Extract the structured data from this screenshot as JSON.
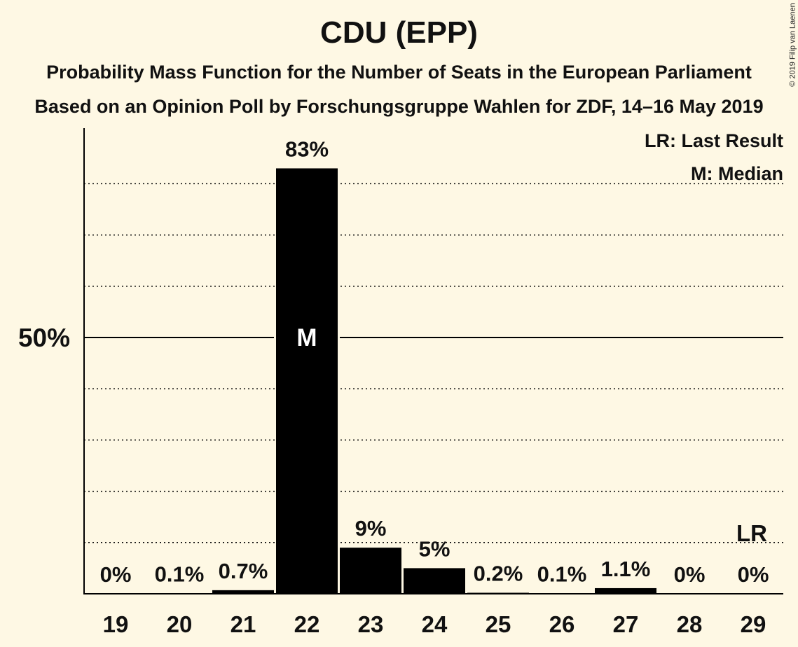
{
  "title": "CDU (EPP)",
  "subtitle1": "Probability Mass Function for the Number of Seats in the European Parliament",
  "subtitle2": "Based on an Opinion Poll by Forschungsgruppe Wahlen for ZDF, 14–16 May 2019",
  "copyright": "© 2019 Filip van Laenen",
  "legend": {
    "lr": "LR: Last Result",
    "m": "M: Median"
  },
  "chart_data": {
    "type": "bar",
    "categories": [
      "19",
      "20",
      "21",
      "22",
      "23",
      "24",
      "25",
      "26",
      "27",
      "28",
      "29"
    ],
    "values": [
      0,
      0.1,
      0.7,
      83,
      9,
      5,
      0.2,
      0.1,
      1.1,
      0,
      0
    ],
    "labels": [
      "0%",
      "0.1%",
      "0.7%",
      "83%",
      "9%",
      "5%",
      "0.2%",
      "0.1%",
      "1.1%",
      "0%",
      "0%"
    ],
    "ylim": [
      0,
      90
    ],
    "ytick_label": "50%",
    "ytick_value": 50,
    "gridlines": [
      10,
      20,
      30,
      40,
      60,
      70,
      80
    ],
    "median_category": "22",
    "median_marker": "M",
    "last_result_category": "29",
    "last_result_marker": "LR",
    "colors": {
      "bar": "#000000",
      "background": "#fef8e4",
      "text": "#111111"
    }
  }
}
